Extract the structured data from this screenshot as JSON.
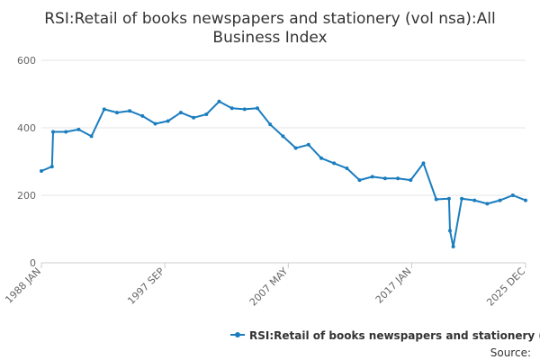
{
  "chart_data": {
    "type": "line",
    "title": "RSI:Retail of books newspapers and stationery (vol nsa):All Business Index",
    "title_lines": [
      "RSI:Retail of books newspapers and stationery (vol nsa):All",
      "Business Index"
    ],
    "xlabel": "",
    "ylabel": "",
    "ylim": [
      0,
      600
    ],
    "yticks": [
      0,
      200,
      400,
      600
    ],
    "x_range": [
      "1988 JAN",
      "2025 DEC"
    ],
    "x_tick_labels": [
      "1988 JAN",
      "1997 SEP",
      "2007 MAY",
      "2017 JAN",
      "2025 DEC"
    ],
    "grid": true,
    "legend_position": "bottom",
    "colors": {
      "series": "#1a7dbf",
      "grid": "#e6e6e6",
      "text": "#333333",
      "axis_text": "#666666"
    },
    "x": [
      "1988 JAN",
      "1988 NOV",
      "1988 DEC",
      "1989 DEC",
      "1990 DEC",
      "1991 DEC",
      "1992 DEC",
      "1993 DEC",
      "1994 DEC",
      "1995 DEC",
      "1996 DEC",
      "1997 DEC",
      "1998 DEC",
      "1999 DEC",
      "2000 DEC",
      "2001 DEC",
      "2002 DEC",
      "2003 DEC",
      "2004 DEC",
      "2005 DEC",
      "2006 DEC",
      "2007 DEC",
      "2008 DEC",
      "2009 DEC",
      "2010 DEC",
      "2011 DEC",
      "2012 DEC",
      "2013 DEC",
      "2014 DEC",
      "2015 DEC",
      "2016 DEC",
      "2017 DEC",
      "2018 DEC",
      "2019 DEC",
      "2020 JAN",
      "2020 APR",
      "2020 DEC",
      "2021 DEC",
      "2022 DEC",
      "2023 DEC",
      "2024 DEC",
      "2025 DEC"
    ],
    "series": [
      {
        "name": "RSI:Retail of books newspapers and stationery (vol nsa):All Business Index",
        "values": [
          272,
          285,
          388,
          388,
          395,
          375,
          455,
          445,
          450,
          435,
          412,
          420,
          445,
          430,
          440,
          478,
          458,
          455,
          458,
          410,
          375,
          340,
          350,
          310,
          295,
          280,
          245,
          255,
          250,
          250,
          245,
          295,
          188,
          190,
          95,
          48,
          190,
          185,
          175,
          185,
          200,
          185
        ]
      }
    ]
  },
  "legend": {
    "label": "RSI:Retail of books newspapers and stationery (vol nsa):All Business Index"
  },
  "source_label": "Source:"
}
